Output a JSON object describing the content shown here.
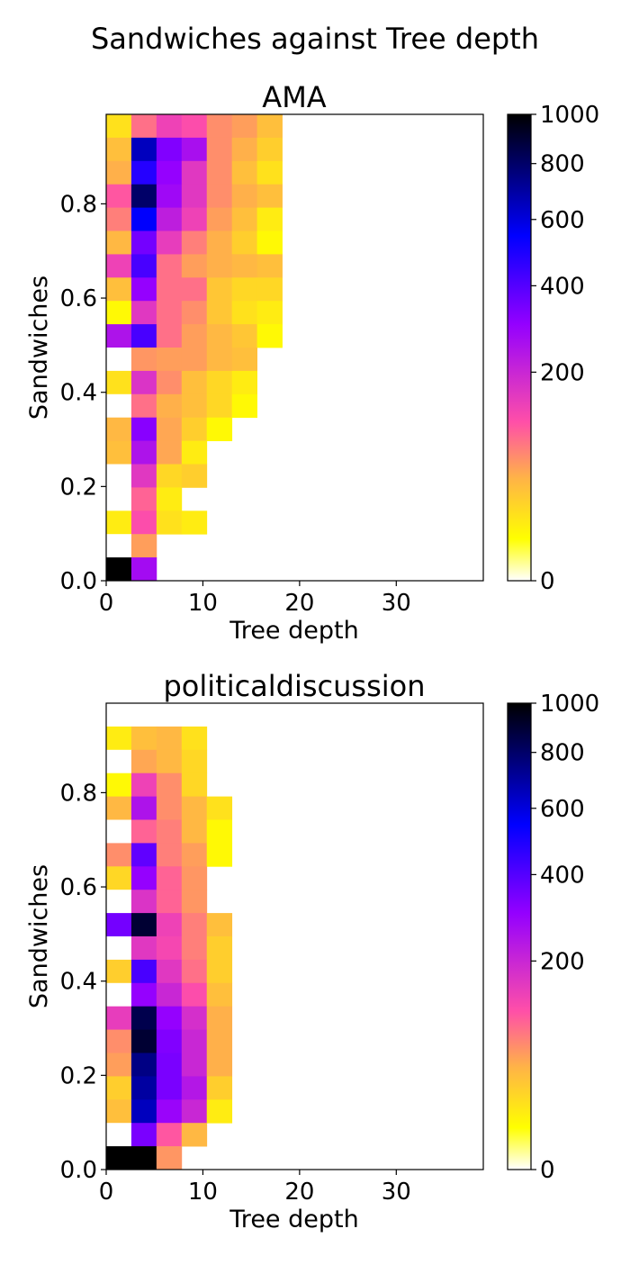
{
  "figure": {
    "title": "Sandwiches against Tree depth"
  },
  "colorbar": {
    "ticks": [
      {
        "value": 0,
        "label": "0"
      },
      {
        "value": 200,
        "label": "200"
      },
      {
        "value": 400,
        "label": "400"
      },
      {
        "value": 600,
        "label": "600"
      },
      {
        "value": 800,
        "label": "800"
      },
      {
        "value": 1000,
        "label": "1000"
      }
    ],
    "colors": [
      "#ffffff",
      "#ffff00",
      "#ffb347",
      "#ff4fa8",
      "#9400ff",
      "#0000ff",
      "#000080",
      "#000000"
    ]
  },
  "chart_data": [
    {
      "type": "heatmap",
      "title": "AMA",
      "xlabel": "Tree depth",
      "ylabel": "Sandwiches",
      "xlim": [
        0,
        39
      ],
      "ylim": [
        0,
        0.99
      ],
      "x_ticks": [
        0,
        10,
        20,
        30
      ],
      "y_ticks": [
        0.0,
        0.2,
        0.4,
        0.6,
        0.8
      ],
      "x_tick_labels": [
        "0",
        "10",
        "20",
        "30"
      ],
      "y_tick_labels": [
        "0.0",
        "0.2",
        "0.4",
        "0.6",
        "0.8"
      ],
      "x_bin_edges": [
        0,
        2.6,
        5.2,
        7.8,
        10.4,
        13.0,
        15.6,
        18.2
      ],
      "y_bin_width": 0.0495,
      "vmin": 0,
      "vmax": 1000,
      "rows_top_to_bottom": [
        [
          20,
          90,
          140,
          120,
          70,
          60,
          40
        ],
        [
          40,
          650,
          330,
          260,
          70,
          50,
          30
        ],
        [
          50,
          480,
          300,
          160,
          70,
          40,
          20
        ],
        [
          110,
          800,
          280,
          160,
          70,
          50,
          40
        ],
        [
          80,
          550,
          220,
          140,
          60,
          40,
          15
        ],
        [
          45,
          350,
          150,
          80,
          50,
          30,
          10
        ],
        [
          140,
          420,
          90,
          60,
          50,
          45,
          40
        ],
        [
          40,
          300,
          90,
          90,
          35,
          25,
          25
        ],
        [
          10,
          160,
          90,
          70,
          35,
          20,
          15
        ],
        [
          250,
          420,
          90,
          60,
          45,
          35,
          10
        ],
        [
          0,
          65,
          60,
          60,
          45,
          40,
          null
        ],
        [
          20,
          170,
          70,
          40,
          25,
          15,
          null
        ],
        [
          0,
          90,
          50,
          40,
          25,
          10,
          null
        ],
        [
          45,
          320,
          55,
          30,
          10,
          null,
          null
        ],
        [
          40,
          250,
          55,
          15,
          null,
          null,
          null
        ],
        [
          0,
          160,
          25,
          30,
          null,
          null,
          null
        ],
        [
          0,
          100,
          15,
          null,
          null,
          null,
          null
        ],
        [
          15,
          120,
          20,
          15,
          null,
          null,
          null
        ],
        [
          0,
          60,
          null,
          null,
          null,
          null,
          null
        ],
        [
          1000,
          270,
          null,
          null,
          null,
          null,
          null
        ]
      ]
    },
    {
      "type": "heatmap",
      "title": "politicaldiscussion",
      "xlabel": "Tree depth",
      "ylabel": "Sandwiches",
      "xlim": [
        0,
        39
      ],
      "ylim": [
        0,
        0.99
      ],
      "x_ticks": [
        0,
        10,
        20,
        30
      ],
      "y_ticks": [
        0.0,
        0.2,
        0.4,
        0.6,
        0.8
      ],
      "x_tick_labels": [
        "0",
        "10",
        "20",
        "30"
      ],
      "y_tick_labels": [
        "0.0",
        "0.2",
        "0.4",
        "0.6",
        "0.8"
      ],
      "x_bin_edges": [
        0,
        2.6,
        5.2,
        7.8,
        10.4,
        13.0
      ],
      "y_bin_width": 0.0495,
      "vmin": 0,
      "vmax": 1000,
      "rows_top_to_bottom": [
        [
          null,
          null,
          null,
          null,
          null
        ],
        [
          15,
          40,
          45,
          20,
          null
        ],
        [
          0,
          55,
          45,
          25,
          null
        ],
        [
          10,
          140,
          70,
          25,
          null
        ],
        [
          45,
          250,
          70,
          45,
          20
        ],
        [
          0,
          100,
          80,
          45,
          10
        ],
        [
          70,
          380,
          80,
          60,
          10
        ],
        [
          25,
          300,
          100,
          65,
          null
        ],
        [
          0,
          170,
          100,
          65,
          null
        ],
        [
          350,
          900,
          140,
          80,
          40
        ],
        [
          0,
          160,
          130,
          80,
          30
        ],
        [
          30,
          420,
          160,
          90,
          30
        ],
        [
          0,
          300,
          200,
          120,
          40
        ],
        [
          150,
          850,
          300,
          180,
          50
        ],
        [
          70,
          900,
          330,
          200,
          50
        ],
        [
          60,
          750,
          340,
          200,
          50
        ],
        [
          30,
          700,
          340,
          240,
          30
        ],
        [
          40,
          650,
          290,
          200,
          15
        ],
        [
          0,
          340,
          110,
          45,
          null
        ],
        [
          1000,
          1000,
          65,
          null,
          null
        ]
      ]
    }
  ]
}
